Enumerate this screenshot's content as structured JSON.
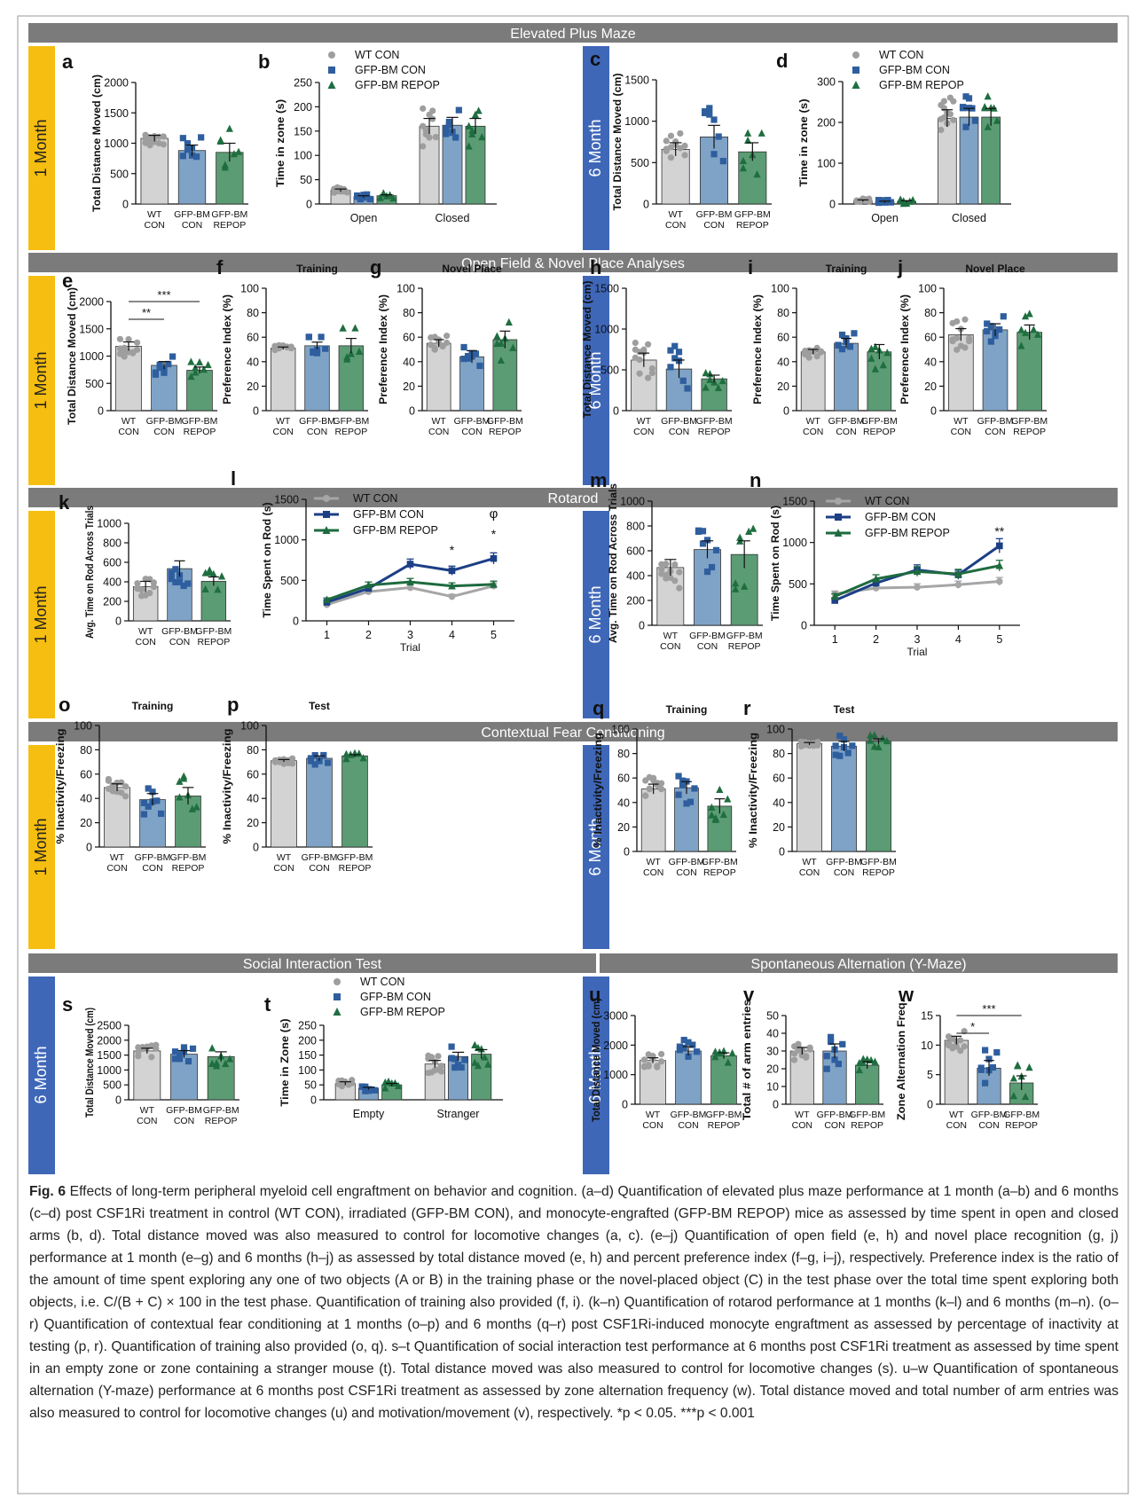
{
  "colors": {
    "wt": "#d3d3d3",
    "wt_point": "#9e9e9e",
    "gfp_con": "#7fa3c6",
    "gfp_con_point": "#2e5e9e",
    "gfp_repop": "#5b9c74",
    "gfp_repop_point": "#1f6e40",
    "line_wt": "#a6a6a6",
    "line_con": "#1c3f86",
    "line_repop": "#1e6b3f",
    "header_bg": "#7b7b7b",
    "side_1m": "#f5be10",
    "side_6m": "#3f67b8"
  },
  "sections": {
    "epm": "Elevated Plus Maze",
    "of": "Open Field & Novel Place Analyses",
    "rotarod": "Rotarod",
    "cfc": "Contextual Fear Conditioning",
    "social": "Social Interaction Test",
    "ymaze": "Spontaneous Alternation (Y-Maze)"
  },
  "side_labels": {
    "m1": "1 Month",
    "m6": "6 Month"
  },
  "legend": [
    "WT CON",
    "GFP-BM CON",
    "GFP-BM REPOP"
  ],
  "chart_data": [
    {
      "id": "a",
      "type": "bar",
      "categories": [
        "WT CON",
        "GFP-BM CON",
        "GFP-BM REPOP"
      ],
      "values": [
        1080,
        880,
        850
      ],
      "errors": [
        50,
        90,
        150
      ],
      "ylabel": "Total Distance Moved (cm)",
      "ylim": [
        0,
        2000
      ],
      "yticks": [
        0,
        500,
        1000,
        1500,
        2000
      ]
    },
    {
      "id": "b",
      "type": "bar",
      "groups": [
        "Open",
        "Closed"
      ],
      "series": [
        {
          "name": "WT CON",
          "values": [
            28,
            160
          ]
        },
        {
          "name": "GFP-BM CON",
          "values": [
            15,
            162
          ]
        },
        {
          "name": "GFP-BM REPOP",
          "values": [
            17,
            160
          ]
        }
      ],
      "ylabel": "Time in zone (s)",
      "ylim": [
        0,
        250
      ],
      "yticks": [
        0,
        50,
        100,
        150,
        200,
        250
      ]
    },
    {
      "id": "c",
      "type": "bar",
      "categories": [
        "WT CON",
        "GFP-BM CON",
        "GFP-BM REPOP"
      ],
      "values": [
        660,
        810,
        630
      ],
      "errors": [
        80,
        140,
        110
      ],
      "ylabel": "Total Distance Moved (cm)",
      "ylim": [
        0,
        1500
      ],
      "yticks": [
        0,
        500,
        1000,
        1500
      ]
    },
    {
      "id": "d",
      "type": "bar",
      "groups": [
        "Open",
        "Closed"
      ],
      "series": [
        {
          "name": "WT CON",
          "values": [
            8,
            210
          ]
        },
        {
          "name": "GFP-BM CON",
          "values": [
            5,
            213
          ]
        },
        {
          "name": "GFP-BM REPOP",
          "values": [
            6,
            213
          ]
        }
      ],
      "ylabel": "Time in zone (s)",
      "ylim": [
        0,
        300
      ],
      "yticks": [
        0,
        100,
        200,
        300
      ]
    },
    {
      "id": "e",
      "type": "bar",
      "categories": [
        "WT CON",
        "GFP-BM CON",
        "GFP-BM REPOP"
      ],
      "values": [
        1180,
        830,
        740
      ],
      "errors": [
        80,
        70,
        60
      ],
      "ylabel": "Total Distance Moved (cm)",
      "ylim": [
        0,
        2000
      ],
      "yticks": [
        0,
        500,
        1000,
        1500,
        2000
      ],
      "annotations": [
        "**",
        "***"
      ]
    },
    {
      "id": "f",
      "type": "bar",
      "title": "Training",
      "categories": [
        "WT CON",
        "GFP-BM CON",
        "GFP-BM REPOP"
      ],
      "values": [
        51,
        53,
        53
      ],
      "errors": [
        1,
        3,
        6
      ],
      "ylabel": "Preference Index (%)",
      "ylim": [
        0,
        100
      ],
      "yticks": [
        0,
        20,
        40,
        60,
        80,
        100
      ]
    },
    {
      "id": "g",
      "type": "bar",
      "title": "Novel Place",
      "categories": [
        "WT CON",
        "GFP-BM CON",
        "GFP-BM REPOP"
      ],
      "values": [
        55,
        44,
        58
      ],
      "errors": [
        3,
        5,
        7
      ],
      "ylabel": "Preference Index (%)",
      "ylim": [
        0,
        100
      ],
      "yticks": [
        0,
        20,
        40,
        60,
        80,
        100
      ]
    },
    {
      "id": "h",
      "type": "bar",
      "categories": [
        "WT CON",
        "GFP-BM CON",
        "GFP-BM REPOP"
      ],
      "values": [
        620,
        510,
        390
      ],
      "errors": [
        85,
        110,
        45
      ],
      "ylabel": "Total Distance Moved (cm)",
      "ylim": [
        0,
        1500
      ],
      "yticks": [
        0,
        500,
        1000,
        1500
      ]
    },
    {
      "id": "i",
      "type": "bar",
      "title": "Training",
      "categories": [
        "WT CON",
        "GFP-BM CON",
        "GFP-BM REPOP"
      ],
      "values": [
        48,
        55,
        48
      ],
      "errors": [
        2,
        4,
        6
      ],
      "ylabel": "Preference Index (%)",
      "ylim": [
        0,
        100
      ],
      "yticks": [
        0,
        20,
        40,
        60,
        80,
        100
      ]
    },
    {
      "id": "j",
      "type": "bar",
      "title": "Novel Place",
      "categories": [
        "WT CON",
        "GFP-BM CON",
        "GFP-BM REPOP"
      ],
      "values": [
        62,
        66,
        64
      ],
      "errors": [
        5,
        5,
        6
      ],
      "ylabel": "Preference Index (%)",
      "ylim": [
        0,
        100
      ],
      "yticks": [
        0,
        20,
        40,
        60,
        80,
        100
      ]
    },
    {
      "id": "k",
      "type": "bar",
      "categories": [
        "WT CON",
        "GFP-BM CON",
        "GFP-BM REPOP"
      ],
      "values": [
        350,
        535,
        405
      ],
      "errors": [
        55,
        80,
        45
      ],
      "ylabel": "Avg. Time on Rod Across Trials",
      "ylim": [
        0,
        1000
      ],
      "yticks": [
        0,
        200,
        400,
        600,
        800,
        1000
      ]
    },
    {
      "id": "l",
      "type": "line",
      "x": [
        1,
        2,
        3,
        4,
        5
      ],
      "series": [
        {
          "name": "WT CON",
          "values": [
            200,
            360,
            410,
            300,
            430
          ]
        },
        {
          "name": "GFP-BM CON",
          "values": [
            230,
            400,
            700,
            620,
            770
          ]
        },
        {
          "name": "GFP-BM REPOP",
          "values": [
            260,
            440,
            480,
            430,
            450
          ]
        }
      ],
      "xlabel": "Trial",
      "ylabel": "Time Spent on Rod (s)",
      "ylim": [
        0,
        1500
      ],
      "yticks": [
        0,
        500,
        1000,
        1500
      ],
      "annotations": [
        "*",
        "φ",
        "*"
      ]
    },
    {
      "id": "m",
      "type": "bar",
      "categories": [
        "WT CON",
        "GFP-BM CON",
        "GFP-BM REPOP"
      ],
      "values": [
        465,
        610,
        570
      ],
      "errors": [
        65,
        70,
        110
      ],
      "ylabel": "Avg. Time on Rod Across Trials",
      "ylim": [
        0,
        1000
      ],
      "yticks": [
        0,
        200,
        400,
        600,
        800,
        1000
      ]
    },
    {
      "id": "n",
      "type": "line",
      "x": [
        1,
        2,
        3,
        4,
        5
      ],
      "series": [
        {
          "name": "WT CON",
          "values": [
            380,
            450,
            460,
            490,
            530
          ]
        },
        {
          "name": "GFP-BM CON",
          "values": [
            300,
            510,
            670,
            610,
            960
          ]
        },
        {
          "name": "GFP-BM REPOP",
          "values": [
            350,
            560,
            650,
            620,
            720
          ]
        }
      ],
      "xlabel": "Trial",
      "ylabel": "Time Spent on Rod (s)",
      "ylim": [
        0,
        1500
      ],
      "yticks": [
        0,
        500,
        1000,
        1500
      ],
      "annotations": [
        "**"
      ]
    },
    {
      "id": "o",
      "type": "bar",
      "title": "Training",
      "categories": [
        "WT CON",
        "GFP-BM CON",
        "GFP-BM REPOP"
      ],
      "values": [
        49,
        39,
        42
      ],
      "errors": [
        3,
        5,
        7
      ],
      "ylabel": "% Inactivity/Freezing",
      "ylim": [
        0,
        100
      ],
      "yticks": [
        0,
        20,
        40,
        60,
        80,
        100
      ]
    },
    {
      "id": "p",
      "type": "bar",
      "title": "Test",
      "categories": [
        "WT CON",
        "GFP-BM CON",
        "GFP-BM REPOP"
      ],
      "values": [
        71,
        73,
        75
      ],
      "errors": [
        1,
        2,
        1
      ],
      "ylabel": "% Inactivity/Freezing",
      "ylim": [
        0,
        100
      ],
      "yticks": [
        0,
        20,
        40,
        60,
        80,
        100
      ]
    },
    {
      "id": "q",
      "type": "bar",
      "title": "Training",
      "categories": [
        "WT CON",
        "GFP-BM CON",
        "GFP-BM REPOP"
      ],
      "values": [
        51,
        52,
        37
      ],
      "errors": [
        4,
        5,
        6
      ],
      "ylabel": "% Inactivity/Freezing",
      "ylim": [
        0,
        100
      ],
      "yticks": [
        0,
        20,
        40,
        60,
        80,
        100
      ]
    },
    {
      "id": "r",
      "type": "bar",
      "title": "Test",
      "categories": [
        "WT CON",
        "GFP-BM CON",
        "GFP-BM REPOP"
      ],
      "values": [
        88,
        86,
        90
      ],
      "errors": [
        1,
        4,
        2
      ],
      "ylabel": "% Inactivity/Freezing",
      "ylim": [
        0,
        100
      ],
      "yticks": [
        0,
        20,
        40,
        60,
        80,
        100
      ]
    },
    {
      "id": "s",
      "type": "bar",
      "categories": [
        "WT CON",
        "GFP-BM CON",
        "GFP-BM REPOP"
      ],
      "values": [
        1640,
        1530,
        1450
      ],
      "errors": [
        90,
        120,
        160
      ],
      "ylabel": "Total Distance Moved (cm)",
      "ylim": [
        0,
        2500
      ],
      "yticks": [
        0,
        500,
        1000,
        1500,
        2000,
        2500
      ]
    },
    {
      "id": "t",
      "type": "bar",
      "groups": [
        "Empty",
        "Stranger"
      ],
      "series": [
        {
          "name": "WT CON",
          "values": [
            55,
            120
          ]
        },
        {
          "name": "GFP-BM CON",
          "values": [
            38,
            145
          ]
        },
        {
          "name": "GFP-BM REPOP",
          "values": [
            50,
            153
          ]
        }
      ],
      "ylabel": "Time in Zone (s)",
      "ylim": [
        0,
        250
      ],
      "yticks": [
        0,
        50,
        100,
        150,
        200,
        250
      ]
    },
    {
      "id": "u",
      "type": "bar",
      "categories": [
        "WT CON",
        "GFP-BM CON",
        "GFP-BM REPOP"
      ],
      "values": [
        1480,
        1800,
        1640
      ],
      "errors": [
        90,
        150,
        100
      ],
      "ylabel": "Total Distance Moved (cm)",
      "ylim": [
        0,
        3000
      ],
      "yticks": [
        0,
        1000,
        2000,
        3000
      ]
    },
    {
      "id": "v",
      "type": "bar",
      "categories": [
        "WT CON",
        "GFP-BM CON",
        "GFP-BM REPOP"
      ],
      "values": [
        30,
        30,
        22
      ],
      "errors": [
        2,
        4,
        2
      ],
      "ylabel": "Total # of arm entries",
      "ylim": [
        0,
        50
      ],
      "yticks": [
        0,
        10,
        20,
        30,
        40,
        50
      ]
    },
    {
      "id": "w",
      "type": "bar",
      "categories": [
        "WT CON",
        "GFP-BM CON",
        "GFP-BM REPOP"
      ],
      "values": [
        10.8,
        6.1,
        3.6
      ],
      "errors": [
        0.7,
        1.3,
        1.2
      ],
      "ylabel": "Zone Alternation Freq.",
      "ylim": [
        0,
        15
      ],
      "yticks": [
        0,
        5,
        10,
        15
      ],
      "annotations": [
        "*",
        "***"
      ]
    }
  ],
  "caption": {
    "title": "Fig. 6",
    "text": " Effects of long-term peripheral myeloid cell engraftment on behavior and cognition. (a–d) Quantification of elevated plus maze performance at 1 month (a–b) and 6 months (c–d) post CSF1Ri treatment in control (WT CON), irradiated (GFP-BM CON), and monocyte-engrafted (GFP-BM REPOP) mice as assessed by time spent in open and closed arms (b, d). Total distance moved was also measured to control for locomotive changes (a, c). (e–j) Quantification of open field (e, h) and novel place recognition (g, j) performance at 1 month (e–g) and 6 months (h–j) as assessed by total distance moved (e, h) and percent preference index (f–g, i–j), respectively. Preference index is the ratio of the amount of time spent exploring any one of two objects (A or B) in the training phase or the novel-placed object (C) in the test phase over the total time spent exploring both objects, i.e. C/(B + C) × 100 in the test phase. Quantification of training also provided (f, i). (k–n) Quantification of rotarod performance at 1 months (k–l) and 6 months (m–n). (o–r) Quantification of contextual fear conditioning at 1 months (o–p) and 6 months (q–r) post CSF1Ri-induced monocyte engraftment as assessed by percentage of inactivity at testing (p, r). Quantification of training also provided (o, q). s–t Quantification of social interaction test performance at 6 months post CSF1Ri treatment as assessed by time spent in an empty zone or zone containing a stranger mouse (t). Total distance moved was also measured to control for locomotive changes (s). u–w Quantification of spontaneous alternation (Y-maze) performance at 6 months post CSF1Ri treatment as assessed by zone alternation frequency (w). Total distance moved and total number of arm entries was also measured to control for locomotive changes (u) and motivation/movement (v), respectively. *p < 0.05. ***p < 0.001"
  }
}
